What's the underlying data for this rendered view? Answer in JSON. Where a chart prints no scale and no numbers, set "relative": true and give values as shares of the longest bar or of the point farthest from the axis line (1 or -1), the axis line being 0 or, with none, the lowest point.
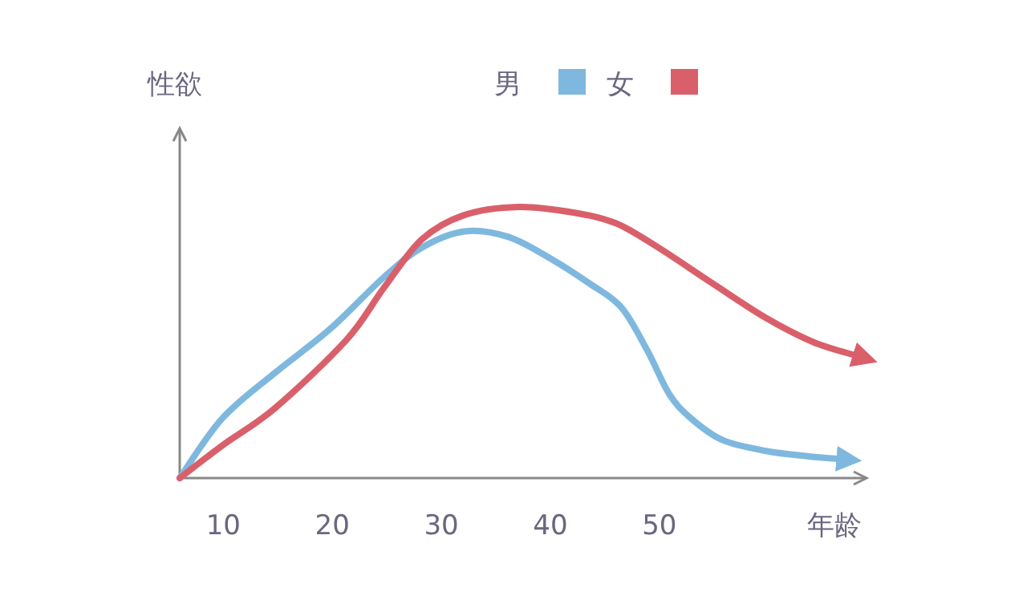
{
  "chart_data": {
    "type": "line",
    "relative": true,
    "xlabel": "年龄",
    "ylabel": "性欲",
    "legend": "top",
    "xlim": [
      6,
      69
    ],
    "xticks": [
      10,
      20,
      30,
      40,
      50
    ],
    "series": [
      {
        "name": "男",
        "color": "#7fb8de",
        "x": [
          6,
          9.9,
          14.8,
          19.8,
          24.7,
          28.2,
          32.1,
          36.1,
          40,
          43.5,
          46.5,
          48.9,
          50.9,
          52.9,
          55.8,
          59.8,
          63.7,
          66.7
        ],
        "values": [
          0,
          0.22,
          0.39,
          0.55,
          0.74,
          0.85,
          0.91,
          0.89,
          0.81,
          0.72,
          0.63,
          0.47,
          0.31,
          0.22,
          0.14,
          0.1,
          0.08,
          0.07
        ]
      },
      {
        "name": "女",
        "color": "#d9606b",
        "x": [
          6,
          9.9,
          14.8,
          21.3,
          24.7,
          28.2,
          32.1,
          37.1,
          42,
          46,
          49.9,
          54.8,
          59.8,
          64.2,
          68.2
        ],
        "values": [
          0,
          0.12,
          0.26,
          0.51,
          0.7,
          0.88,
          0.97,
          1,
          0.98,
          0.94,
          0.85,
          0.72,
          0.59,
          0.5,
          0.45
        ]
      }
    ]
  }
}
